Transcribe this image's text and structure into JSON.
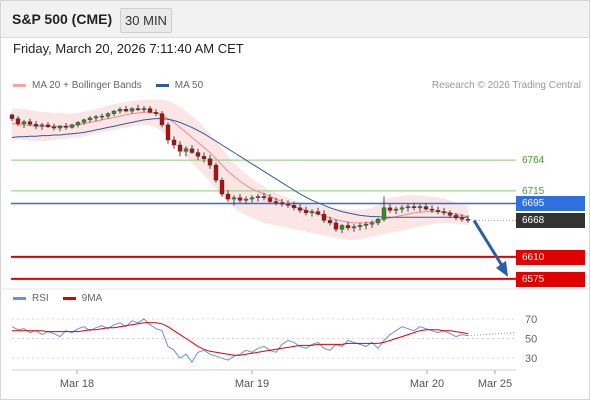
{
  "header": {
    "symbol": "S&P 500 (CME)",
    "period": "30 MIN"
  },
  "datetime": "Friday, March 20, 2026 7:11:40 AM CET",
  "legend": {
    "bollinger": "MA 20 + Bollinger Bands",
    "ma50": "MA 50",
    "rsi": "RSI",
    "rsi_ma": "9MA",
    "credit": "Research © 2026 Trading Central"
  },
  "colors": {
    "bollinger": "#f5a3a3",
    "ma50": "#2e5c9a",
    "resistance": "#8ec97a",
    "support": "#e00000",
    "pivot": "#2f6fde",
    "last": "#333333",
    "arrow": "#2a5ea8",
    "rsi": "#6b8fe0",
    "rsi_ma": "#e00000"
  },
  "levels": [
    {
      "value": 6764,
      "label": "6764",
      "kind": "resistance"
    },
    {
      "value": 6715,
      "label": "6715",
      "kind": "resistance"
    },
    {
      "value": 6695,
      "label": "6695",
      "kind": "pivot"
    },
    {
      "value": 6668,
      "label": "6668",
      "kind": "last"
    },
    {
      "value": 6610,
      "label": "6610",
      "kind": "support"
    },
    {
      "value": 6575,
      "label": "6575",
      "kind": "support"
    }
  ],
  "chart_data": [
    {
      "type": "candlestick",
      "title": "S&P 500 (CME)",
      "ylim": [
        6562,
        6866
      ],
      "x_ticks": [
        "Mar 18",
        "Mar 19",
        "Mar 20",
        "Mar 25"
      ],
      "ohlc": [
        [
          6836,
          6838,
          6826,
          6830
        ],
        [
          6830,
          6834,
          6818,
          6822
        ],
        [
          6822,
          6828,
          6815,
          6825
        ],
        [
          6825,
          6830,
          6818,
          6821
        ],
        [
          6821,
          6826,
          6813,
          6818
        ],
        [
          6818,
          6823,
          6812,
          6820
        ],
        [
          6820,
          6824,
          6815,
          6817
        ],
        [
          6817,
          6822,
          6811,
          6815
        ],
        [
          6815,
          6820,
          6810,
          6818
        ],
        [
          6818,
          6823,
          6812,
          6816
        ],
        [
          6816,
          6822,
          6814,
          6820
        ],
        [
          6820,
          6826,
          6816,
          6824
        ],
        [
          6824,
          6830,
          6820,
          6828
        ],
        [
          6828,
          6834,
          6824,
          6831
        ],
        [
          6831,
          6836,
          6826,
          6833
        ],
        [
          6833,
          6838,
          6828,
          6834
        ],
        [
          6834,
          6840,
          6830,
          6838
        ],
        [
          6838,
          6844,
          6834,
          6842
        ],
        [
          6842,
          6848,
          6838,
          6845
        ],
        [
          6845,
          6850,
          6840,
          6842
        ],
        [
          6842,
          6848,
          6838,
          6846
        ],
        [
          6846,
          6852,
          6842,
          6844
        ],
        [
          6844,
          6850,
          6840,
          6846
        ],
        [
          6846,
          6850,
          6838,
          6840
        ],
        [
          6840,
          6845,
          6834,
          6838
        ],
        [
          6838,
          6842,
          6816,
          6820
        ],
        [
          6820,
          6824,
          6790,
          6796
        ],
        [
          6796,
          6802,
          6782,
          6788
        ],
        [
          6788,
          6794,
          6770,
          6778
        ],
        [
          6778,
          6786,
          6770,
          6782
        ],
        [
          6782,
          6788,
          6774,
          6776
        ],
        [
          6776,
          6782,
          6764,
          6770
        ],
        [
          6770,
          6776,
          6760,
          6766
        ],
        [
          6766,
          6772,
          6750,
          6756
        ],
        [
          6756,
          6760,
          6728,
          6732
        ],
        [
          6732,
          6736,
          6706,
          6710
        ],
        [
          6710,
          6716,
          6698,
          6702
        ],
        [
          6702,
          6708,
          6692,
          6704
        ],
        [
          6704,
          6710,
          6696,
          6700
        ],
        [
          6700,
          6706,
          6694,
          6702
        ],
        [
          6702,
          6708,
          6696,
          6704
        ],
        [
          6704,
          6710,
          6698,
          6706
        ],
        [
          6706,
          6712,
          6700,
          6704
        ],
        [
          6704,
          6710,
          6696,
          6698
        ],
        [
          6698,
          6704,
          6692,
          6696
        ],
        [
          6696,
          6702,
          6690,
          6694
        ],
        [
          6694,
          6700,
          6688,
          6692
        ],
        [
          6692,
          6698,
          6684,
          6688
        ],
        [
          6688,
          6694,
          6680,
          6684
        ],
        [
          6684,
          6690,
          6676,
          6680
        ],
        [
          6680,
          6686,
          6674,
          6682
        ],
        [
          6682,
          6688,
          6676,
          6678
        ],
        [
          6678,
          6684,
          6664,
          6668
        ],
        [
          6668,
          6674,
          6660,
          6664
        ],
        [
          6664,
          6670,
          6650,
          6654
        ],
        [
          6654,
          6662,
          6648,
          6660
        ],
        [
          6660,
          6666,
          6652,
          6656
        ],
        [
          6656,
          6662,
          6650,
          6658
        ],
        [
          6658,
          6664,
          6652,
          6660
        ],
        [
          6660,
          6666,
          6654,
          6662
        ],
        [
          6662,
          6668,
          6656,
          6664
        ],
        [
          6664,
          6672,
          6660,
          6670
        ],
        [
          6670,
          6706,
          6666,
          6688
        ],
        [
          6688,
          6694,
          6680,
          6684
        ],
        [
          6684,
          6690,
          6678,
          6686
        ],
        [
          6686,
          6692,
          6680,
          6688
        ],
        [
          6688,
          6694,
          6682,
          6690
        ],
        [
          6690,
          6696,
          6684,
          6688
        ],
        [
          6688,
          6694,
          6682,
          6690
        ],
        [
          6690,
          6696,
          6684,
          6686
        ],
        [
          6686,
          6692,
          6680,
          6684
        ],
        [
          6684,
          6690,
          6678,
          6682
        ],
        [
          6682,
          6688,
          6676,
          6680
        ],
        [
          6680,
          6684,
          6672,
          6676
        ],
        [
          6676,
          6680,
          6668,
          6672
        ],
        [
          6672,
          6678,
          6666,
          6670
        ],
        [
          6670,
          6676,
          6664,
          6668
        ]
      ],
      "ma20": [
        6822,
        6821,
        6820,
        6819,
        6818,
        6818,
        6818,
        6818,
        6818,
        6818,
        6819,
        6820,
        6822,
        6824,
        6826,
        6828,
        6830,
        6832,
        6834,
        6836,
        6838,
        6839,
        6840,
        6840,
        6839,
        6836,
        6830,
        6824,
        6816,
        6808,
        6800,
        6792,
        6784,
        6776,
        6766,
        6756,
        6746,
        6738,
        6730,
        6724,
        6718,
        6714,
        6710,
        6706,
        6702,
        6698,
        6694,
        6690,
        6687,
        6684,
        6681,
        6678,
        6675,
        6672,
        6669,
        6667,
        6665,
        6664,
        6664,
        6664,
        6665,
        6667,
        6670,
        6672,
        6674,
        6676,
        6678,
        6680,
        6681,
        6682,
        6682,
        6682,
        6681,
        6680,
        6678,
        6676,
        6674
      ],
      "bb_upper": [
        6846,
        6846,
        6845,
        6844,
        6842,
        6841,
        6840,
        6839,
        6839,
        6838,
        6838,
        6839,
        6841,
        6843,
        6846,
        6848,
        6851,
        6853,
        6855,
        6857,
        6858,
        6859,
        6860,
        6860,
        6860,
        6860,
        6858,
        6854,
        6848,
        6842,
        6834,
        6826,
        6816,
        6806,
        6794,
        6782,
        6770,
        6760,
        6750,
        6742,
        6734,
        6728,
        6722,
        6716,
        6712,
        6708,
        6704,
        6700,
        6698,
        6696,
        6694,
        6692,
        6690,
        6688,
        6687,
        6686,
        6685,
        6685,
        6685,
        6686,
        6688,
        6692,
        6700,
        6704,
        6706,
        6707,
        6708,
        6708,
        6708,
        6707,
        6706,
        6705,
        6703,
        6700,
        6697,
        6694,
        6690
      ],
      "bb_lower": [
        6798,
        6797,
        6796,
        6795,
        6794,
        6794,
        6795,
        6796,
        6797,
        6798,
        6799,
        6800,
        6802,
        6804,
        6806,
        6808,
        6810,
        6812,
        6814,
        6816,
        6818,
        6820,
        6820,
        6819,
        6817,
        6810,
        6800,
        6790,
        6780,
        6770,
        6760,
        6750,
        6740,
        6730,
        6718,
        6706,
        6696,
        6688,
        6682,
        6676,
        6672,
        6668,
        6664,
        6662,
        6660,
        6658,
        6656,
        6654,
        6652,
        6650,
        6648,
        6646,
        6644,
        6642,
        6640,
        6638,
        6637,
        6637,
        6638,
        6640,
        6642,
        6644,
        6646,
        6648,
        6650,
        6652,
        6654,
        6656,
        6658,
        6660,
        6662,
        6663,
        6664,
        6664,
        6663,
        6662,
        6660
      ],
      "ma50": [
        6800,
        6801,
        6801,
        6802,
        6802,
        6803,
        6803,
        6804,
        6804,
        6805,
        6806,
        6807,
        6808,
        6810,
        6812,
        6814,
        6816,
        6818,
        6820,
        6822,
        6824,
        6826,
        6828,
        6829,
        6830,
        6830,
        6829,
        6827,
        6824,
        6820,
        6816,
        6811,
        6806,
        6800,
        6794,
        6788,
        6782,
        6776,
        6770,
        6764,
        6758,
        6752,
        6746,
        6740,
        6734,
        6728,
        6722,
        6716,
        6710,
        6705,
        6700,
        6696,
        6692,
        6688,
        6685,
        6682,
        6680,
        6678,
        6676,
        6675,
        6674,
        6674,
        6673,
        6673,
        6673,
        6673,
        6673,
        6673,
        6673,
        6673,
        6673,
        6673,
        6673,
        6673,
        6673,
        6673,
        6673
      ],
      "forecast": {
        "from": 6668,
        "to": 6575
      }
    },
    {
      "type": "line",
      "title": "RSI",
      "ylim": [
        20,
        78
      ],
      "y_ticks": [
        70,
        50,
        30
      ],
      "series": [
        {
          "name": "RSI",
          "values": [
            62,
            59,
            60,
            56,
            58,
            54,
            57,
            55,
            52,
            58,
            56,
            60,
            62,
            58,
            61,
            63,
            60,
            64,
            66,
            62,
            68,
            66,
            70,
            64,
            60,
            58,
            42,
            38,
            30,
            34,
            26,
            36,
            38,
            34,
            32,
            30,
            28,
            32,
            34,
            38,
            36,
            40,
            42,
            38,
            36,
            44,
            48,
            46,
            42,
            40,
            44,
            46,
            40,
            38,
            44,
            42,
            48,
            46,
            44,
            42,
            46,
            40,
            48,
            54,
            58,
            62,
            60,
            58,
            62,
            60,
            58,
            56,
            58,
            55,
            52,
            54,
            53
          ]
        },
        {
          "name": "9MA",
          "values": [
            58,
            58,
            58,
            58,
            58,
            58,
            57,
            57,
            57,
            57,
            57,
            57,
            58,
            59,
            59,
            60,
            61,
            61,
            62,
            63,
            64,
            65,
            66,
            66,
            66,
            65,
            62,
            58,
            54,
            50,
            46,
            42,
            39,
            37,
            36,
            35,
            34,
            33,
            33,
            34,
            35,
            36,
            37,
            38,
            39,
            40,
            41,
            42,
            43,
            43,
            43,
            44,
            44,
            44,
            44,
            44,
            45,
            45,
            45,
            45,
            45,
            45,
            46,
            48,
            50,
            52,
            54,
            56,
            58,
            59,
            59,
            59,
            58,
            58,
            57,
            56,
            55
          ]
        }
      ]
    }
  ]
}
